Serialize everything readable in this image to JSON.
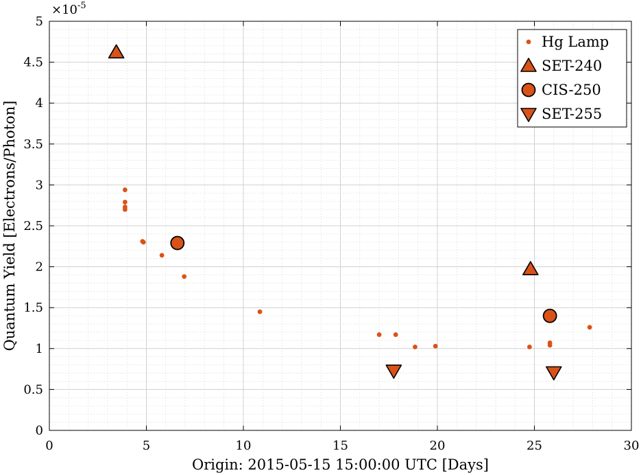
{
  "chart_data": {
    "type": "scatter",
    "xlabel": "Origin: 2015-05-15 15:00:00 UTC [Days]",
    "ylabel": "Quantum Yield [Electrons/Photon]",
    "y_multiplier": "×10",
    "y_exponent": "-5",
    "xlim": [
      0,
      30
    ],
    "ylim": [
      0,
      5
    ],
    "xticks": [
      0,
      5,
      10,
      15,
      20,
      25,
      30
    ],
    "yticks": [
      0,
      0.5,
      1,
      1.5,
      2,
      2.5,
      3,
      3.5,
      4,
      4.5,
      5
    ],
    "x_tick_labels": [
      "0",
      "5",
      "10",
      "15",
      "20",
      "25",
      "30"
    ],
    "y_tick_labels": [
      "0",
      "0.5",
      "1",
      "1.5",
      "2",
      "2.5",
      "3",
      "3.5",
      "4",
      "4.5",
      "5"
    ],
    "grid": true,
    "minor_grid": true,
    "legend_position": "top-right",
    "color": "#d95319",
    "series": [
      {
        "name": "Hg Lamp",
        "marker": "dot",
        "points": [
          [
            3.9,
            2.94
          ],
          [
            3.9,
            2.79
          ],
          [
            3.9,
            2.73
          ],
          [
            3.9,
            2.7
          ],
          [
            4.8,
            2.31
          ],
          [
            4.85,
            2.3
          ],
          [
            5.8,
            2.14
          ],
          [
            6.95,
            1.88
          ],
          [
            10.85,
            1.45
          ],
          [
            17.0,
            1.17
          ],
          [
            17.85,
            1.17
          ],
          [
            18.85,
            1.02
          ],
          [
            19.9,
            1.03
          ],
          [
            24.75,
            1.02
          ],
          [
            25.8,
            1.07
          ],
          [
            25.8,
            1.04
          ],
          [
            27.85,
            1.26
          ]
        ]
      },
      {
        "name": "SET-240",
        "marker": "triangle-up",
        "points": [
          [
            3.45,
            4.62
          ],
          [
            24.8,
            1.97
          ]
        ]
      },
      {
        "name": "CIS-250",
        "marker": "circle",
        "points": [
          [
            6.6,
            2.29
          ],
          [
            25.8,
            1.4
          ]
        ]
      },
      {
        "name": "SET-255",
        "marker": "triangle-down",
        "points": [
          [
            17.75,
            0.73
          ],
          [
            26.0,
            0.71
          ]
        ]
      }
    ]
  }
}
